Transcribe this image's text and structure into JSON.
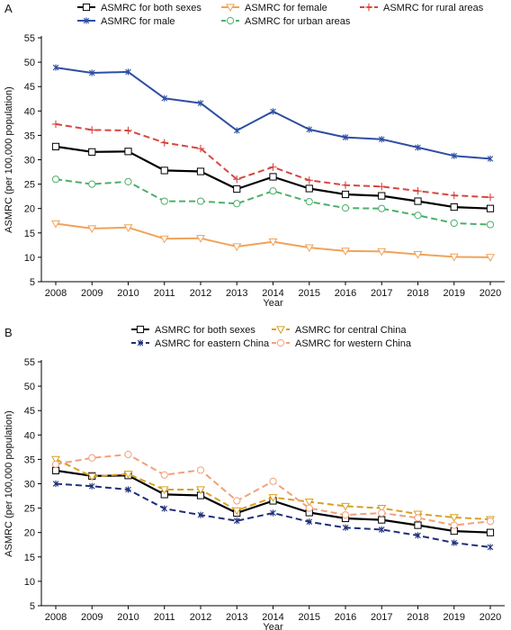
{
  "chart_data": [
    {
      "type": "line",
      "panel_label": "A",
      "xlabel": "Year",
      "ylabel": "ASMRC (per 100,000 population)",
      "x": [
        2008,
        2009,
        2010,
        2011,
        2012,
        2013,
        2014,
        2015,
        2016,
        2017,
        2018,
        2019,
        2020
      ],
      "ylim": [
        5,
        55
      ],
      "yticks": [
        5,
        10,
        15,
        20,
        25,
        30,
        35,
        40,
        45,
        50,
        55
      ],
      "legend_position": "top",
      "series": [
        {
          "name": "ASMRC for both sexes",
          "color": "#000000",
          "marker": "square",
          "dash": "solid",
          "values": [
            32.7,
            31.6,
            31.7,
            27.8,
            27.6,
            24.0,
            26.5,
            24.1,
            22.9,
            22.6,
            21.5,
            20.3,
            20.0
          ]
        },
        {
          "name": "ASMRC for female",
          "color": "#f0a35a",
          "marker": "triangle-down",
          "dash": "solid",
          "values": [
            16.9,
            15.9,
            16.1,
            13.8,
            13.9,
            12.2,
            13.2,
            12.0,
            11.3,
            11.2,
            10.6,
            10.1,
            10.0
          ]
        },
        {
          "name": "ASMRC for rural areas",
          "color": "#d8453f",
          "marker": "plus",
          "dash": "dashed",
          "values": [
            37.3,
            36.1,
            36.0,
            33.5,
            32.3,
            26.0,
            28.5,
            25.8,
            24.8,
            24.5,
            23.6,
            22.7,
            22.3
          ]
        },
        {
          "name": "ASMRC for male",
          "color": "#2e4ea3",
          "marker": "asterisk",
          "dash": "solid",
          "values": [
            48.9,
            47.8,
            48.0,
            42.6,
            41.6,
            36.0,
            39.9,
            36.2,
            34.6,
            34.2,
            32.5,
            30.8,
            30.2
          ]
        },
        {
          "name": "ASMRC for urban areas",
          "color": "#4caf6a",
          "marker": "circle",
          "dash": "dashed",
          "values": [
            26.0,
            25.0,
            25.5,
            21.5,
            21.5,
            21.0,
            23.6,
            21.4,
            20.1,
            20.0,
            18.6,
            17.0,
            16.7
          ]
        }
      ]
    },
    {
      "type": "line",
      "panel_label": "B",
      "xlabel": "Year",
      "ylabel": "ASMRC (per 100,000 population)",
      "x": [
        2008,
        2009,
        2010,
        2011,
        2012,
        2013,
        2014,
        2015,
        2016,
        2017,
        2018,
        2019,
        2020
      ],
      "ylim": [
        5,
        55
      ],
      "yticks": [
        5,
        10,
        15,
        20,
        25,
        30,
        35,
        40,
        45,
        50,
        55
      ],
      "legend_position": "top",
      "series": [
        {
          "name": "ASMRC for both sexes",
          "color": "#000000",
          "marker": "square",
          "dash": "solid",
          "values": [
            32.7,
            31.6,
            31.7,
            27.8,
            27.6,
            24.0,
            26.5,
            24.1,
            22.9,
            22.6,
            21.5,
            20.3,
            20.0
          ]
        },
        {
          "name": "ASMRC for eastern China",
          "color": "#1f2f7a",
          "marker": "asterisk",
          "dash": "dashed",
          "values": [
            30.0,
            29.5,
            28.8,
            24.9,
            23.6,
            22.4,
            24.0,
            22.2,
            21.0,
            20.6,
            19.4,
            17.9,
            17.0
          ]
        },
        {
          "name": "ASMRC for central China",
          "color": "#d9a020",
          "marker": "triangle-down",
          "dash": "dashed",
          "values": [
            35.0,
            31.5,
            32.0,
            28.8,
            28.8,
            24.5,
            27.2,
            26.3,
            25.4,
            25.0,
            23.8,
            23.1,
            22.7
          ]
        },
        {
          "name": "ASMRC for western China",
          "color": "#f2a07a",
          "marker": "circle",
          "dash": "dashed",
          "values": [
            34.0,
            35.3,
            36.0,
            31.8,
            32.8,
            26.5,
            30.5,
            25.0,
            23.6,
            24.0,
            23.0,
            21.5,
            22.3
          ]
        }
      ]
    }
  ]
}
